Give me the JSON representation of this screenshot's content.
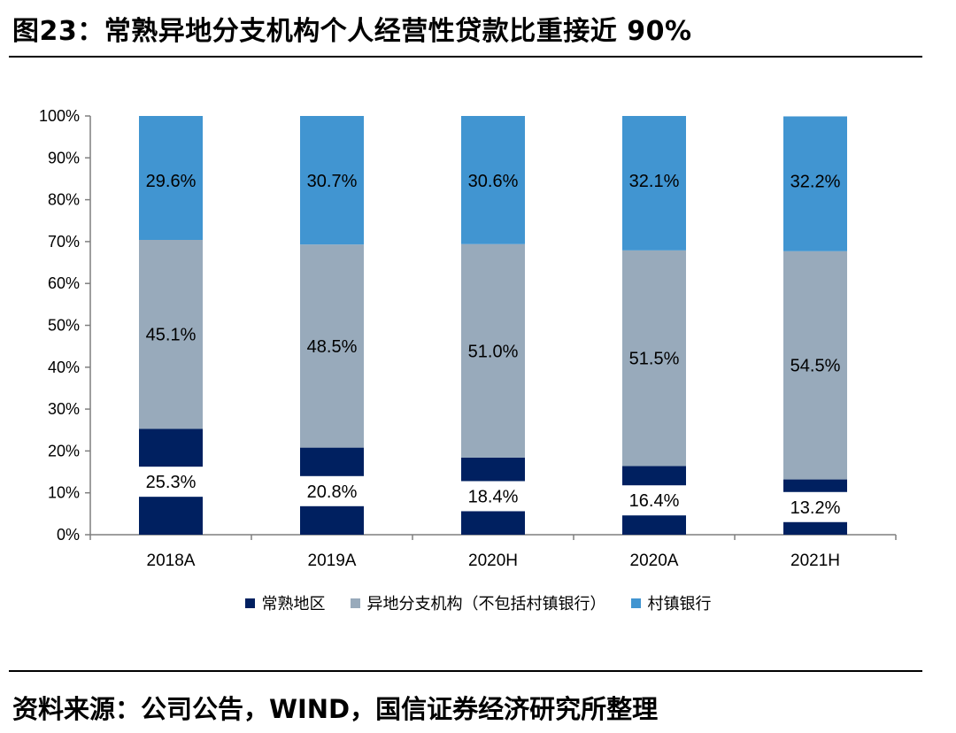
{
  "figure": {
    "title": "图23：常熟异地分支机构个人经营性贷款比重接近 90%",
    "source": "资料来源：公司公告，WIND，国信证券经济研究所整理"
  },
  "colors": {
    "local": "#002060",
    "branch": "#98AABB",
    "village": "#4195D1"
  },
  "chart_data": {
    "type": "bar",
    "stacked": true,
    "percent": true,
    "categories": [
      "2018A",
      "2019A",
      "2020H",
      "2020A",
      "2021H"
    ],
    "series": [
      {
        "name": "常熟地区",
        "values": [
          25.3,
          20.8,
          18.4,
          16.4,
          13.2
        ]
      },
      {
        "name": "异地分支机构（不包括村镇银行）",
        "values": [
          45.1,
          48.5,
          51.0,
          51.5,
          54.5
        ]
      },
      {
        "name": "村镇银行",
        "values": [
          29.6,
          30.7,
          30.6,
          32.1,
          32.2
        ]
      }
    ],
    "data_labels": {
      "local": [
        "25.3%",
        "20.8%",
        "18.4%",
        "16.4%",
        "13.2%"
      ],
      "branch": [
        "45.1%",
        "48.5%",
        "51.0%",
        "51.5%",
        "54.5%"
      ],
      "village": [
        "29.6%",
        "30.7%",
        "30.6%",
        "32.1%",
        "32.2%"
      ]
    },
    "y_ticks": [
      "0%",
      "10%",
      "20%",
      "30%",
      "40%",
      "50%",
      "60%",
      "70%",
      "80%",
      "90%",
      "100%"
    ],
    "ylim": [
      0,
      100
    ],
    "grid": false,
    "legend_position": "bottom",
    "legend": [
      "常熟地区",
      "异地分支机构（不包括村镇银行）",
      "村镇银行"
    ]
  }
}
